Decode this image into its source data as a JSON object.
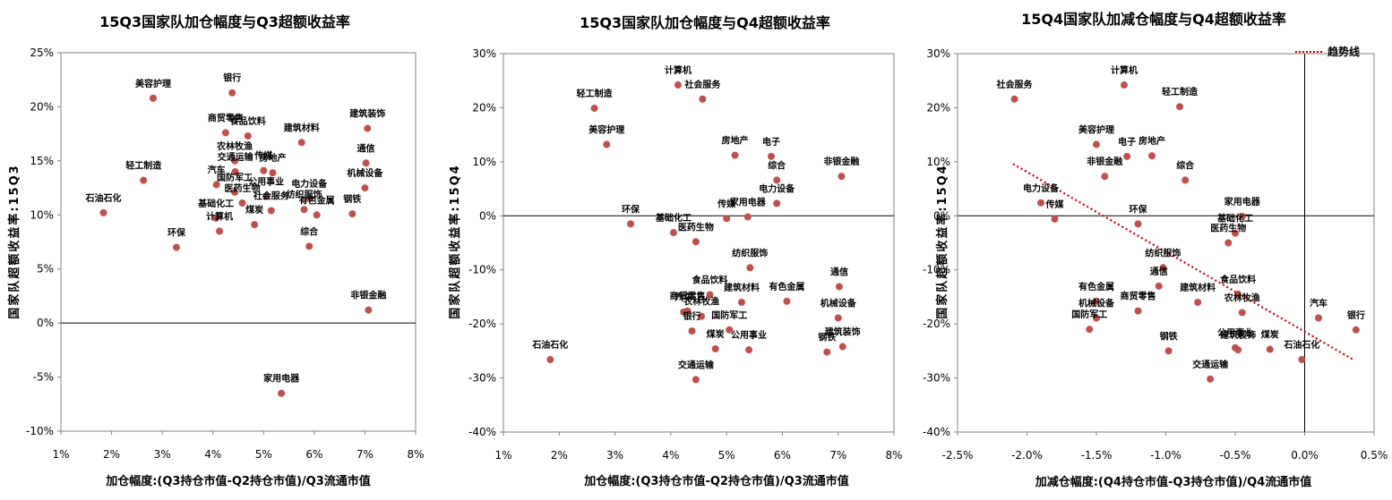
{
  "chart_data": [
    {
      "type": "scatter",
      "title": "15Q3国家队加仓幅度与Q3超额收益率",
      "xlabel": "加仓幅度:(Q3持仓市值-Q2持仓市值)/Q3流通市值",
      "ylabel": "国家队超额收益率:15Q3",
      "xlim": [
        1,
        8
      ],
      "ylim": [
        -10,
        25
      ],
      "x_ticks": [
        1,
        2,
        3,
        4,
        5,
        6,
        7,
        8
      ],
      "y_ticks": [
        -10,
        -5,
        0,
        5,
        10,
        15,
        20,
        25
      ],
      "x_tick_labels": [
        "1%",
        "2%",
        "3%",
        "4%",
        "5%",
        "6%",
        "7%",
        "8%"
      ],
      "y_tick_labels": [
        "-10%",
        "-5%",
        "0%",
        "5%",
        "10%",
        "15%",
        "20%",
        "25%"
      ],
      "grid": false,
      "color": "#c0504d",
      "points": [
        {
          "name": "美容护理",
          "x": 2.82,
          "y": 20.8
        },
        {
          "name": "银行",
          "x": 4.38,
          "y": 21.3
        },
        {
          "name": "商贸零售",
          "x": 4.25,
          "y": 17.6
        },
        {
          "name": "食品饮料",
          "x": 4.69,
          "y": 17.3
        },
        {
          "name": "建筑材料",
          "x": 5.75,
          "y": 16.7
        },
        {
          "name": "建筑装饰",
          "x": 7.05,
          "y": 18.0
        },
        {
          "name": "农林牧渔",
          "x": 4.43,
          "y": 15.0
        },
        {
          "name": "交通运输",
          "x": 4.44,
          "y": 14.0
        },
        {
          "name": "轻工制造",
          "x": 2.63,
          "y": 13.2
        },
        {
          "name": "传媒",
          "x": 5.0,
          "y": 14.1
        },
        {
          "name": "房地产",
          "x": 5.18,
          "y": 13.9
        },
        {
          "name": "通信",
          "x": 7.02,
          "y": 14.8
        },
        {
          "name": "汽车",
          "x": 4.07,
          "y": 12.8
        },
        {
          "name": "国防军工",
          "x": 4.43,
          "y": 12.1
        },
        {
          "name": "电力设备",
          "x": 5.9,
          "y": 11.5
        },
        {
          "name": "机械设备",
          "x": 7.0,
          "y": 12.5
        },
        {
          "name": "公用事业",
          "x": 5.05,
          "y": 11.7
        },
        {
          "name": "石油石化",
          "x": 1.84,
          "y": 10.2
        },
        {
          "name": "医药生物",
          "x": 4.58,
          "y": 11.1
        },
        {
          "name": "社会服务",
          "x": 5.15,
          "y": 10.4
        },
        {
          "name": "纺织服饰",
          "x": 5.8,
          "y": 10.5
        },
        {
          "name": "有色金属",
          "x": 6.05,
          "y": 10.0
        },
        {
          "name": "钢铁",
          "x": 6.75,
          "y": 10.1
        },
        {
          "name": "基础化工",
          "x": 4.06,
          "y": 9.7
        },
        {
          "name": "煤炭",
          "x": 4.82,
          "y": 9.1
        },
        {
          "name": "计算机",
          "x": 4.13,
          "y": 8.5
        },
        {
          "name": "环保",
          "x": 3.28,
          "y": 7.0
        },
        {
          "name": "综合",
          "x": 5.9,
          "y": 7.1
        },
        {
          "name": "非银金融",
          "x": 7.07,
          "y": 1.2
        },
        {
          "name": "家用电器",
          "x": 5.35,
          "y": -6.5
        }
      ]
    },
    {
      "type": "scatter",
      "title": "15Q3国家队加仓幅度与Q4超额收益率",
      "xlabel": "加仓幅度:(Q3持仓市值-Q2持仓市值)/Q3流通市值",
      "ylabel": "国家队超额收益率:15Q4",
      "xlim": [
        1,
        8
      ],
      "ylim": [
        -40,
        30
      ],
      "x_ticks": [
        1,
        2,
        3,
        4,
        5,
        6,
        7,
        8
      ],
      "y_ticks": [
        -40,
        -30,
        -20,
        -10,
        0,
        10,
        20,
        30
      ],
      "x_tick_labels": [
        "1%",
        "2%",
        "3%",
        "4%",
        "5%",
        "6%",
        "7%",
        "8%"
      ],
      "y_tick_labels": [
        "-40%",
        "-30%",
        "-20%",
        "-10%",
        "0%",
        "10%",
        "20%",
        "30%"
      ],
      "grid": false,
      "color": "#c0504d",
      "points": [
        {
          "name": "计算机",
          "x": 4.13,
          "y": 24.2
        },
        {
          "name": "社会服务",
          "x": 4.57,
          "y": 21.6
        },
        {
          "name": "轻工制造",
          "x": 2.63,
          "y": 19.9
        },
        {
          "name": "美容护理",
          "x": 2.85,
          "y": 13.2
        },
        {
          "name": "房地产",
          "x": 5.15,
          "y": 11.2
        },
        {
          "name": "电子",
          "x": 5.8,
          "y": 11.0
        },
        {
          "name": "非银金融",
          "x": 7.06,
          "y": 7.3
        },
        {
          "name": "综合",
          "x": 5.9,
          "y": 6.6
        },
        {
          "name": "电力设备",
          "x": 5.9,
          "y": 2.3
        },
        {
          "name": "家用电器",
          "x": 5.38,
          "y": -0.2
        },
        {
          "name": "传媒",
          "x": 5.0,
          "y": -0.5
        },
        {
          "name": "环保",
          "x": 3.28,
          "y": -1.5
        },
        {
          "name": "基础化工",
          "x": 4.05,
          "y": -3.1
        },
        {
          "name": "医药生物",
          "x": 4.45,
          "y": -4.8
        },
        {
          "name": "纺织服饰",
          "x": 5.42,
          "y": -9.6
        },
        {
          "name": "食品饮料",
          "x": 4.7,
          "y": -14.6
        },
        {
          "name": "商贸零售",
          "x": 4.3,
          "y": -17.6
        },
        {
          "name": "建筑材料",
          "x": 5.27,
          "y": -16.0
        },
        {
          "name": "有色金属",
          "x": 6.08,
          "y": -15.8
        },
        {
          "name": "通信",
          "x": 7.02,
          "y": -13.1
        },
        {
          "name": "汽车",
          "x": 4.23,
          "y": -17.8
        },
        {
          "name": "农林牧渔",
          "x": 4.55,
          "y": -18.6
        },
        {
          "name": "国防军工",
          "x": 5.05,
          "y": -21.1
        },
        {
          "name": "机械设备",
          "x": 7.0,
          "y": -18.9
        },
        {
          "name": "银行",
          "x": 4.38,
          "y": -21.3
        },
        {
          "name": "公用事业",
          "x": 5.4,
          "y": -24.8
        },
        {
          "name": "煤炭",
          "x": 4.8,
          "y": -24.6
        },
        {
          "name": "钢铁",
          "x": 6.8,
          "y": -25.2
        },
        {
          "name": "建筑装饰",
          "x": 7.08,
          "y": -24.2
        },
        {
          "name": "石油石化",
          "x": 1.84,
          "y": -26.6
        },
        {
          "name": "交通运输",
          "x": 4.45,
          "y": -30.3
        }
      ]
    },
    {
      "type": "scatter",
      "title": "15Q4国家队加减仓幅度与Q4超额收益率",
      "xlabel": "加减仓幅度:(Q4持仓市值-Q3持仓市值)/Q4流通市值",
      "ylabel": "国家队超额收益率:15Q4",
      "xlim": [
        -2.5,
        0.5
      ],
      "ylim": [
        -40,
        30
      ],
      "x_ticks": [
        -2.5,
        -2.0,
        -1.5,
        -1.0,
        -0.5,
        0.0,
        0.5
      ],
      "y_ticks": [
        -40,
        -30,
        -20,
        -10,
        0,
        10,
        20,
        30
      ],
      "x_tick_labels": [
        "-2.5%",
        "-2.0%",
        "-1.5%",
        "-1.0%",
        "-0.5%",
        "0.0%",
        "0.5%"
      ],
      "y_tick_labels": [
        "-40%",
        "-30%",
        "-20%",
        "-10%",
        "0%",
        "10%",
        "20%",
        "30%"
      ],
      "grid": false,
      "legend": {
        "label": "趋势线",
        "position": "top-right"
      },
      "trendline": {
        "x": [
          -2.1,
          0.35
        ],
        "y": [
          9.6,
          -26.6
        ],
        "color": "#c00000"
      },
      "color": "#c0504d",
      "points": [
        {
          "name": "社会服务",
          "x": -2.09,
          "y": 21.6
        },
        {
          "name": "计算机",
          "x": -1.3,
          "y": 24.2
        },
        {
          "name": "轻工制造",
          "x": -0.9,
          "y": 20.2
        },
        {
          "name": "美容护理",
          "x": -1.5,
          "y": 13.2
        },
        {
          "name": "电子",
          "x": -1.28,
          "y": 11.0
        },
        {
          "name": "房地产",
          "x": -1.1,
          "y": 11.1
        },
        {
          "name": "非银金融",
          "x": -1.44,
          "y": 7.3
        },
        {
          "name": "综合",
          "x": -0.86,
          "y": 6.6
        },
        {
          "name": "电力设备",
          "x": -1.9,
          "y": 2.4
        },
        {
          "name": "传媒",
          "x": -1.8,
          "y": -0.6
        },
        {
          "name": "家用电器",
          "x": -0.45,
          "y": -0.1
        },
        {
          "name": "环保",
          "x": -1.2,
          "y": -1.5
        },
        {
          "name": "基础化工",
          "x": -0.5,
          "y": -3.2
        },
        {
          "name": "医药生物",
          "x": -0.55,
          "y": -5.0
        },
        {
          "name": "纺织服饰",
          "x": -1.02,
          "y": -9.6
        },
        {
          "name": "通信",
          "x": -1.05,
          "y": -13.0
        },
        {
          "name": "有色金属",
          "x": -1.5,
          "y": -15.8
        },
        {
          "name": "食品饮料",
          "x": -0.48,
          "y": -14.5
        },
        {
          "name": "建筑材料",
          "x": -0.77,
          "y": -16.0
        },
        {
          "name": "商贸零售",
          "x": -1.2,
          "y": -17.6
        },
        {
          "name": "机械设备",
          "x": -1.5,
          "y": -18.9
        },
        {
          "name": "农林牧渔",
          "x": -0.45,
          "y": -17.9
        },
        {
          "name": "汽车",
          "x": 0.1,
          "y": -18.9
        },
        {
          "name": "银行",
          "x": 0.37,
          "y": -21.1
        },
        {
          "name": "国防军工",
          "x": -1.55,
          "y": -21.0
        },
        {
          "name": "钢铁",
          "x": -0.98,
          "y": -25.0
        },
        {
          "name": "建筑装饰",
          "x": -0.48,
          "y": -24.8
        },
        {
          "name": "煤炭",
          "x": -0.25,
          "y": -24.7
        },
        {
          "name": "石油石化",
          "x": -0.02,
          "y": -26.6
        },
        {
          "name": "交通运输",
          "x": -0.68,
          "y": -30.2
        },
        {
          "name": "公用事业",
          "x": -0.5,
          "y": -24.4
        }
      ]
    }
  ]
}
